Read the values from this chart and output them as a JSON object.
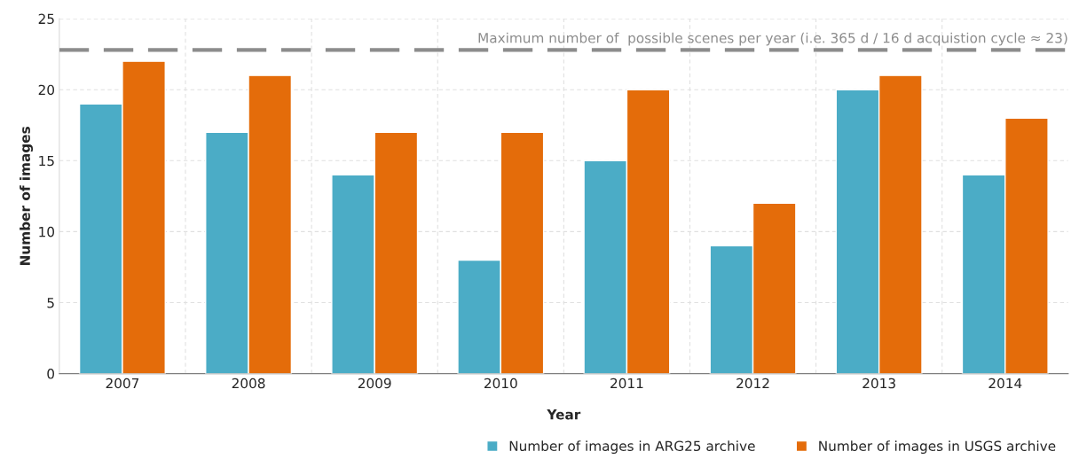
{
  "chart_data": {
    "type": "bar",
    "xlabel": "Year",
    "ylabel": "Number of images",
    "categories": [
      "2007",
      "2008",
      "2009",
      "2010",
      "2011",
      "2012",
      "2013",
      "2014"
    ],
    "series": [
      {
        "name": "Number of images in ARG25 archive",
        "color": "#4bacc6",
        "values": [
          19,
          17,
          14,
          8,
          15,
          9,
          20,
          14
        ]
      },
      {
        "name": "Number of images in USGS archive",
        "color": "#e46c0a",
        "values": [
          22,
          21,
          17,
          17,
          20,
          12,
          21,
          18
        ]
      }
    ],
    "ylim": [
      0,
      25
    ],
    "yticks": [
      0,
      5,
      10,
      15,
      20,
      25
    ],
    "ref_lines": [
      {
        "axis": "y",
        "value": 22.8,
        "label": "Maximum number of  possible scenes per year (i.e. 365 d / 16 d acquistion cycle ≈ 23)",
        "color": "#8c8c8c",
        "line_style": "dashed"
      }
    ],
    "grid": true,
    "legend": "bottom right"
  }
}
